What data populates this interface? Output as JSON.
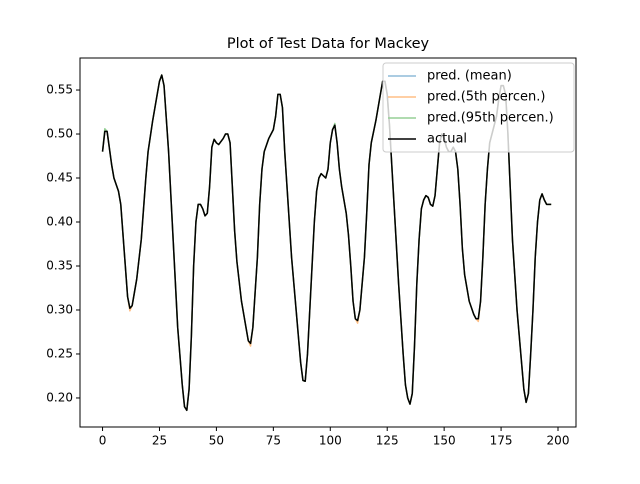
{
  "chart_data": {
    "type": "line",
    "title": "Plot of Test Data for Mackey",
    "x": [
      0,
      1,
      2,
      4,
      5,
      7,
      8,
      10,
      11,
      12,
      13,
      15,
      17,
      19,
      20,
      22,
      24,
      25,
      26,
      27,
      29,
      31,
      33,
      35,
      36,
      37,
      38,
      39,
      40,
      41,
      42,
      43,
      44,
      45,
      46,
      47,
      48,
      49,
      50,
      51,
      53,
      54,
      55,
      56,
      57,
      58,
      59,
      61,
      63,
      64,
      65,
      66,
      68,
      69,
      70,
      71,
      73,
      75,
      76,
      77,
      78,
      79,
      80,
      81,
      83,
      85,
      86,
      87,
      88,
      89,
      90,
      91,
      92,
      93,
      94,
      95,
      96,
      98,
      99,
      100,
      101,
      102,
      103,
      104,
      105,
      107,
      108,
      109,
      110,
      111,
      112,
      113,
      115,
      116,
      117,
      118,
      120,
      121,
      122,
      123,
      124,
      125,
      126,
      128,
      130,
      131,
      132,
      133,
      134,
      135,
      136,
      137,
      138,
      139,
      140,
      141,
      142,
      143,
      144,
      145,
      146,
      147,
      148,
      149,
      150,
      151,
      152,
      153,
      154,
      155,
      156,
      157,
      158,
      159,
      161,
      163,
      164,
      165,
      166,
      167,
      168,
      169,
      170,
      172,
      173,
      174,
      175,
      176,
      177,
      178,
      179,
      180,
      182,
      184,
      185,
      186,
      187,
      188,
      189,
      190,
      191,
      192,
      193,
      194,
      195,
      197
    ],
    "series": [
      {
        "name": "pred. (mean)",
        "color": "#8fbbd9",
        "values": [
          0.48,
          0.503,
          0.503,
          0.465,
          0.45,
          0.435,
          0.42,
          0.35,
          0.315,
          0.302,
          0.305,
          0.335,
          0.38,
          0.45,
          0.48,
          0.515,
          0.545,
          0.56,
          0.567,
          0.555,
          0.48,
          0.38,
          0.28,
          0.215,
          0.19,
          0.186,
          0.21,
          0.27,
          0.35,
          0.4,
          0.42,
          0.42,
          0.415,
          0.407,
          0.41,
          0.44,
          0.485,
          0.494,
          0.49,
          0.488,
          0.495,
          0.5,
          0.5,
          0.49,
          0.44,
          0.39,
          0.355,
          0.31,
          0.28,
          0.265,
          0.262,
          0.28,
          0.36,
          0.42,
          0.46,
          0.48,
          0.495,
          0.505,
          0.52,
          0.545,
          0.545,
          0.53,
          0.48,
          0.44,
          0.36,
          0.3,
          0.27,
          0.24,
          0.22,
          0.219,
          0.25,
          0.3,
          0.35,
          0.4,
          0.435,
          0.45,
          0.455,
          0.45,
          0.46,
          0.49,
          0.505,
          0.51,
          0.49,
          0.46,
          0.44,
          0.41,
          0.385,
          0.35,
          0.31,
          0.29,
          0.288,
          0.3,
          0.36,
          0.41,
          0.465,
          0.49,
          0.515,
          0.53,
          0.545,
          0.56,
          0.56,
          0.545,
          0.51,
          0.42,
          0.33,
          0.29,
          0.25,
          0.215,
          0.2,
          0.193,
          0.205,
          0.26,
          0.33,
          0.38,
          0.415,
          0.425,
          0.43,
          0.428,
          0.42,
          0.418,
          0.43,
          0.46,
          0.49,
          0.5,
          0.495,
          0.485,
          0.48,
          0.48,
          0.485,
          0.48,
          0.46,
          0.42,
          0.37,
          0.34,
          0.31,
          0.295,
          0.29,
          0.29,
          0.31,
          0.36,
          0.42,
          0.46,
          0.49,
          0.51,
          0.52,
          0.54,
          0.555,
          0.555,
          0.545,
          0.5,
          0.44,
          0.38,
          0.3,
          0.24,
          0.21,
          0.195,
          0.205,
          0.25,
          0.3,
          0.36,
          0.4,
          0.425,
          0.432,
          0.425,
          0.42,
          0.42
        ]
      },
      {
        "name": "pred.(5th percen.)",
        "color": "#ffbf86",
        "values": [
          0.48,
          0.503,
          0.503,
          0.465,
          0.45,
          0.435,
          0.42,
          0.35,
          0.315,
          0.299,
          0.305,
          0.335,
          0.38,
          0.45,
          0.48,
          0.515,
          0.545,
          0.56,
          0.567,
          0.555,
          0.48,
          0.38,
          0.28,
          0.215,
          0.19,
          0.186,
          0.21,
          0.27,
          0.35,
          0.4,
          0.42,
          0.42,
          0.415,
          0.407,
          0.41,
          0.44,
          0.485,
          0.494,
          0.49,
          0.488,
          0.495,
          0.5,
          0.5,
          0.49,
          0.44,
          0.39,
          0.355,
          0.31,
          0.28,
          0.265,
          0.259,
          0.28,
          0.36,
          0.42,
          0.46,
          0.48,
          0.495,
          0.505,
          0.52,
          0.545,
          0.545,
          0.53,
          0.48,
          0.44,
          0.36,
          0.3,
          0.27,
          0.24,
          0.22,
          0.219,
          0.25,
          0.3,
          0.35,
          0.4,
          0.435,
          0.45,
          0.455,
          0.45,
          0.46,
          0.49,
          0.505,
          0.51,
          0.49,
          0.46,
          0.44,
          0.41,
          0.385,
          0.35,
          0.31,
          0.29,
          0.285,
          0.3,
          0.36,
          0.41,
          0.465,
          0.49,
          0.515,
          0.53,
          0.545,
          0.56,
          0.56,
          0.545,
          0.51,
          0.42,
          0.33,
          0.29,
          0.25,
          0.215,
          0.2,
          0.193,
          0.205,
          0.26,
          0.33,
          0.38,
          0.415,
          0.425,
          0.43,
          0.428,
          0.42,
          0.418,
          0.43,
          0.46,
          0.49,
          0.5,
          0.495,
          0.485,
          0.48,
          0.48,
          0.485,
          0.48,
          0.46,
          0.42,
          0.37,
          0.34,
          0.31,
          0.295,
          0.29,
          0.287,
          0.31,
          0.36,
          0.42,
          0.46,
          0.49,
          0.51,
          0.52,
          0.54,
          0.555,
          0.555,
          0.545,
          0.5,
          0.44,
          0.38,
          0.3,
          0.24,
          0.21,
          0.195,
          0.205,
          0.25,
          0.3,
          0.36,
          0.4,
          0.425,
          0.432,
          0.425,
          0.42,
          0.42
        ]
      },
      {
        "name": "pred.(95th percen.)",
        "color": "#95cf95",
        "values": [
          0.48,
          0.506,
          0.503,
          0.465,
          0.45,
          0.435,
          0.42,
          0.35,
          0.315,
          0.302,
          0.305,
          0.335,
          0.38,
          0.45,
          0.48,
          0.515,
          0.545,
          0.56,
          0.567,
          0.555,
          0.48,
          0.38,
          0.28,
          0.215,
          0.19,
          0.186,
          0.21,
          0.27,
          0.35,
          0.4,
          0.42,
          0.42,
          0.415,
          0.407,
          0.41,
          0.44,
          0.485,
          0.494,
          0.49,
          0.488,
          0.495,
          0.5,
          0.5,
          0.49,
          0.44,
          0.39,
          0.355,
          0.31,
          0.28,
          0.265,
          0.262,
          0.28,
          0.36,
          0.42,
          0.46,
          0.48,
          0.495,
          0.505,
          0.52,
          0.545,
          0.545,
          0.53,
          0.48,
          0.44,
          0.36,
          0.3,
          0.27,
          0.24,
          0.22,
          0.219,
          0.25,
          0.3,
          0.35,
          0.4,
          0.435,
          0.45,
          0.455,
          0.45,
          0.46,
          0.49,
          0.505,
          0.512,
          0.49,
          0.46,
          0.44,
          0.41,
          0.385,
          0.35,
          0.31,
          0.29,
          0.288,
          0.3,
          0.36,
          0.41,
          0.465,
          0.49,
          0.515,
          0.53,
          0.545,
          0.56,
          0.56,
          0.545,
          0.51,
          0.42,
          0.33,
          0.29,
          0.25,
          0.215,
          0.2,
          0.193,
          0.205,
          0.26,
          0.33,
          0.38,
          0.415,
          0.425,
          0.43,
          0.428,
          0.42,
          0.418,
          0.43,
          0.46,
          0.49,
          0.5,
          0.495,
          0.485,
          0.48,
          0.48,
          0.485,
          0.48,
          0.46,
          0.42,
          0.37,
          0.34,
          0.31,
          0.295,
          0.29,
          0.29,
          0.31,
          0.36,
          0.42,
          0.46,
          0.49,
          0.51,
          0.52,
          0.54,
          0.555,
          0.555,
          0.545,
          0.5,
          0.44,
          0.38,
          0.3,
          0.24,
          0.21,
          0.195,
          0.205,
          0.25,
          0.3,
          0.36,
          0.4,
          0.425,
          0.432,
          0.425,
          0.42,
          0.42
        ]
      },
      {
        "name": "actual",
        "color": "#000000",
        "values": [
          0.48,
          0.503,
          0.503,
          0.465,
          0.45,
          0.435,
          0.42,
          0.35,
          0.315,
          0.302,
          0.305,
          0.335,
          0.38,
          0.45,
          0.48,
          0.515,
          0.545,
          0.56,
          0.567,
          0.555,
          0.48,
          0.38,
          0.28,
          0.215,
          0.19,
          0.186,
          0.21,
          0.27,
          0.35,
          0.4,
          0.42,
          0.42,
          0.415,
          0.407,
          0.41,
          0.44,
          0.485,
          0.494,
          0.49,
          0.488,
          0.495,
          0.5,
          0.5,
          0.49,
          0.44,
          0.39,
          0.355,
          0.31,
          0.28,
          0.265,
          0.262,
          0.28,
          0.36,
          0.42,
          0.46,
          0.48,
          0.495,
          0.505,
          0.52,
          0.545,
          0.545,
          0.53,
          0.48,
          0.44,
          0.36,
          0.3,
          0.27,
          0.24,
          0.22,
          0.219,
          0.25,
          0.3,
          0.35,
          0.4,
          0.435,
          0.45,
          0.455,
          0.45,
          0.46,
          0.49,
          0.505,
          0.51,
          0.49,
          0.46,
          0.44,
          0.41,
          0.385,
          0.35,
          0.31,
          0.29,
          0.288,
          0.3,
          0.36,
          0.41,
          0.465,
          0.49,
          0.515,
          0.53,
          0.545,
          0.56,
          0.56,
          0.545,
          0.51,
          0.42,
          0.33,
          0.29,
          0.25,
          0.215,
          0.2,
          0.193,
          0.205,
          0.26,
          0.33,
          0.38,
          0.415,
          0.425,
          0.43,
          0.428,
          0.42,
          0.418,
          0.43,
          0.46,
          0.49,
          0.5,
          0.495,
          0.485,
          0.48,
          0.48,
          0.485,
          0.48,
          0.46,
          0.42,
          0.37,
          0.34,
          0.31,
          0.295,
          0.29,
          0.29,
          0.31,
          0.36,
          0.42,
          0.46,
          0.49,
          0.51,
          0.52,
          0.54,
          0.555,
          0.555,
          0.545,
          0.5,
          0.44,
          0.38,
          0.3,
          0.24,
          0.21,
          0.195,
          0.205,
          0.25,
          0.3,
          0.36,
          0.4,
          0.425,
          0.432,
          0.425,
          0.42,
          0.42
        ]
      }
    ],
    "xlim": [
      -9.9,
      207.9
    ],
    "xticks": [
      0,
      25,
      50,
      75,
      100,
      125,
      150,
      175,
      200
    ],
    "ylim": [
      0.167,
      0.5864
    ],
    "yticks": [
      {
        "value": 0.2,
        "label": "0.20"
      },
      0.25,
      {
        "value": 0.3,
        "label": "0.30"
      },
      0.35,
      {
        "value": 0.4,
        "label": "0.40"
      },
      0.45,
      {
        "value": 0.5,
        "label": "0.50"
      },
      0.55
    ],
    "grid": false,
    "legend": "upper right"
  }
}
